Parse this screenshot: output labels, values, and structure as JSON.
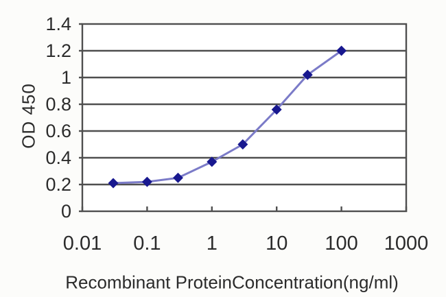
{
  "page": {
    "background": "#fcfcfa"
  },
  "chart_data": {
    "type": "line",
    "title": "",
    "xlabel": "Recombinant ProteinConcentration(ng/ml)",
    "ylabel": "OD 450",
    "x_scale": "log",
    "xlim": [
      0.01,
      1000
    ],
    "ylim": [
      0,
      1.4
    ],
    "x_tick_values": [
      0.01,
      0.1,
      1,
      10,
      100,
      1000
    ],
    "x_tick_labels": [
      "0.01",
      "0.1",
      "1",
      "10",
      "100",
      "1000"
    ],
    "y_tick_values": [
      0,
      0.2,
      0.4,
      0.6,
      0.8,
      1,
      1.2,
      1.4
    ],
    "y_tick_labels": [
      "0",
      "0.2",
      "0.4",
      "0.6",
      "0.8",
      "1",
      "1.2",
      "1.4"
    ],
    "grid": "horizontal-only",
    "legend": "none",
    "series": [
      {
        "name": "OD 450",
        "marker": "diamond",
        "x": [
          0.03,
          0.1,
          0.3,
          1,
          3,
          10,
          30,
          100
        ],
        "y": [
          0.21,
          0.22,
          0.25,
          0.37,
          0.5,
          0.76,
          1.02,
          1.2
        ]
      }
    ],
    "colors": {
      "line": "#7b7bc8",
      "marker": "#18188f",
      "grid": "#4f4f4f",
      "text": "#2b2b2b",
      "plot_background": "#ffffff"
    }
  }
}
